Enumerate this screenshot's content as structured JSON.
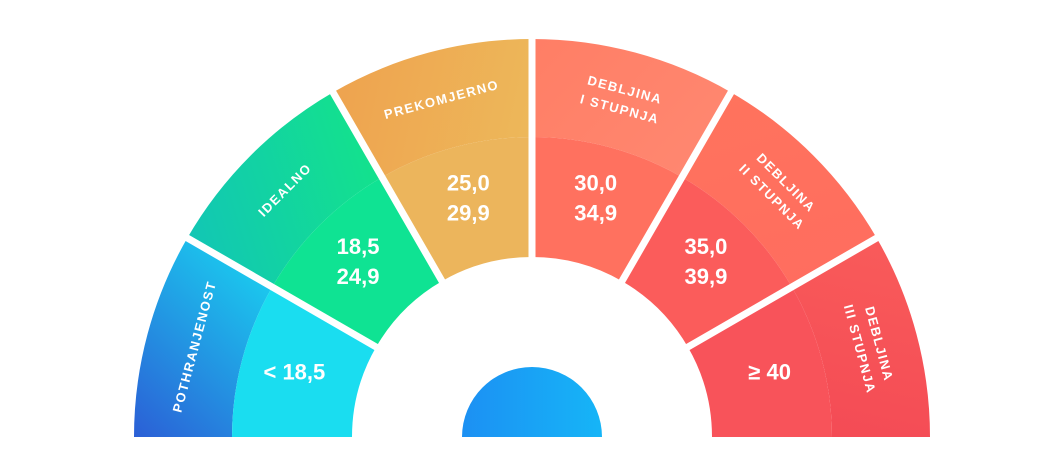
{
  "segments": [
    {
      "label_lines": [
        "POTHRANJENOST"
      ],
      "values": [
        "< 18,5"
      ],
      "outer_from": "#2B5FD6",
      "outer_to": "#1BC8EE",
      "inner": "#1ADDF0"
    },
    {
      "label_lines": [
        "IDEALNO"
      ],
      "values": [
        "18,5",
        "24,9"
      ],
      "outer_from": "#12C6B5",
      "outer_to": "#13E28C",
      "inner": "#0FE393"
    },
    {
      "label_lines": [
        "PREKOMJERNO"
      ],
      "values": [
        "25,0",
        "29,9"
      ],
      "outer_from": "#EEA34F",
      "outer_to": "#EDB85A",
      "inner": "#ECB55C"
    },
    {
      "label_lines": [
        "DEBLJINA",
        "I STUPNJA"
      ],
      "values": [
        "30,0",
        "34,9"
      ],
      "outer_from": "#FF7E65",
      "outer_to": "#FF8770",
      "inner": "#FF715F"
    },
    {
      "label_lines": [
        "DEBLJINA",
        "II STUPNJA"
      ],
      "values": [
        "35,0",
        "39,9"
      ],
      "outer_from": "#FF735D",
      "outer_to": "#FF6D5F",
      "inner": "#FB5C5B"
    },
    {
      "label_lines": [
        "DEBLJINA",
        "III STUPNJA"
      ],
      "values": [
        "≥ 40"
      ],
      "outer_from": "#F95B5A",
      "outer_to": "#F44B55",
      "inner": "#F8535A"
    }
  ],
  "hub": {
    "color_from": "#1C90F3",
    "color_to": "#16B5F7"
  }
}
